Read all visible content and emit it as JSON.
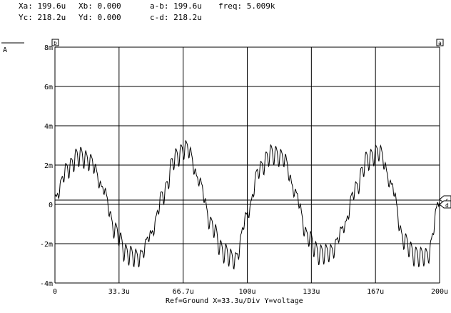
{
  "readouts": {
    "xa": "Xa: 199.6u",
    "xb": "Xb: 0.000",
    "ab": "a-b: 199.6u",
    "freq": "freq: 5.009k",
    "yc": "Yc: 218.2u",
    "yd": "Yd: 0.000",
    "cd": "c-d: 218.2u"
  },
  "trace_label": "A",
  "marker_b": "b",
  "marker_a": "a",
  "marker_c": "c",
  "marker_d": "d",
  "footer": "Ref=Ground  X=33.3u/Div Y=voltage",
  "chart_data": {
    "type": "line",
    "title": "",
    "xlabel": "Ref=Ground  X=33.3u/Div Y=voltage",
    "ylabel": "",
    "xlim": [
      0,
      200
    ],
    "ylim": [
      -4,
      8
    ],
    "x_unit": "u",
    "y_unit": "m",
    "grid": true,
    "x_ticks": [
      "0",
      "33.3u",
      "66.7u",
      "100u",
      "133u",
      "167u",
      "200u"
    ],
    "y_ticks": [
      "8m",
      "6m",
      "4m",
      "2m",
      "0",
      "-2m",
      "-4m"
    ],
    "cursors": {
      "a_x": 199.6,
      "b_x": 0,
      "c_y": 0.2182,
      "d_y": 0
    },
    "series": [
      {
        "x": [
          0,
          6.25,
          12.5,
          18.75,
          25,
          31.25,
          37.5,
          43.75,
          50,
          56.25,
          62.5,
          68.75,
          75,
          81.25,
          87.5,
          93.75,
          100,
          106.25,
          112.5,
          118.75,
          125,
          131.25,
          137.5,
          143.75,
          150,
          156.25,
          162.5,
          168.75,
          175,
          181.25,
          187.5,
          193.75,
          200
        ],
        "values": [
          0.3,
          1.8,
          2.5,
          2.2,
          0.8,
          -1.3,
          -2.5,
          -2.7,
          -1.5,
          0.5,
          2.4,
          2.9,
          1.2,
          -1.0,
          -2.4,
          -2.8,
          -0.5,
          1.8,
          2.6,
          2.4,
          0.6,
          -1.6,
          -2.5,
          -2.4,
          -1.2,
          0.8,
          2.3,
          2.7,
          1.0,
          -1.8,
          -2.6,
          -2.6,
          0.2
        ]
      }
    ]
  }
}
